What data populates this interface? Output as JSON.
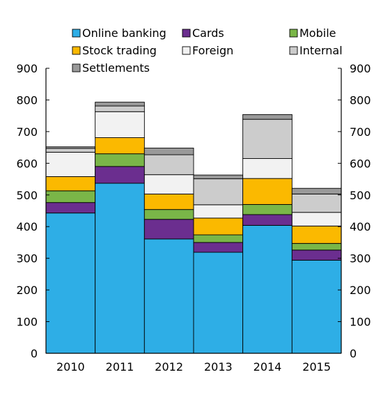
{
  "chart_data": {
    "type": "bar",
    "stacked": true,
    "categories": [
      "2010",
      "2011",
      "2012",
      "2013",
      "2014",
      "2015"
    ],
    "series": [
      {
        "name": "Online banking",
        "color": "#2eaee6",
        "values": [
          443,
          537,
          361,
          319,
          404,
          294
        ]
      },
      {
        "name": "Cards",
        "color": "#6b2e8f",
        "values": [
          33,
          53,
          62,
          31,
          34,
          32
        ]
      },
      {
        "name": "Mobile",
        "color": "#7ab648",
        "values": [
          37,
          40,
          31,
          24,
          32,
          21
        ]
      },
      {
        "name": "Stock trading",
        "color": "#fbb900",
        "values": [
          45,
          51,
          49,
          53,
          82,
          55
        ]
      },
      {
        "name": "Foreign",
        "color": "#f2f2f2",
        "values": [
          77,
          82,
          61,
          42,
          63,
          43
        ]
      },
      {
        "name": "Internal",
        "color": "#cccccc",
        "values": [
          12,
          18,
          63,
          82,
          124,
          58
        ]
      },
      {
        "name": "Settlements",
        "color": "#999999",
        "values": [
          5,
          12,
          21,
          12,
          15,
          18
        ]
      }
    ],
    "ylim": [
      0,
      900
    ],
    "yticks": [
      "0",
      "100",
      "200",
      "300",
      "400",
      "500",
      "600",
      "700",
      "800",
      "900"
    ],
    "right_axis": true,
    "grid": false,
    "legend_position": "top"
  }
}
